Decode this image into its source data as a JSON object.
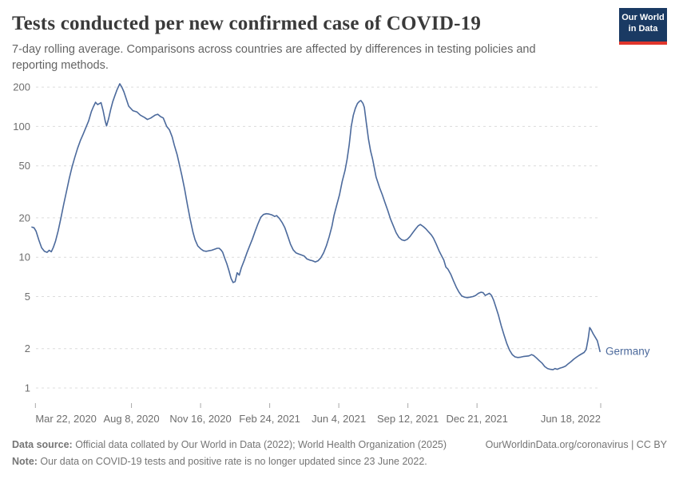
{
  "header": {
    "title": "Tests conducted per new confirmed case of COVID-19",
    "subtitle": "7-day rolling average. Comparisons across countries are affected by differences in testing policies and reporting methods.",
    "logo": {
      "line1": "Our World",
      "line2": "in Data",
      "bg_color": "#1a3a63",
      "bar_color": "#e0362c"
    }
  },
  "chart_data": {
    "type": "line",
    "title": "Tests conducted per new confirmed case of COVID-19",
    "y_scale": "log",
    "ylim": [
      1,
      240
    ],
    "grid": "dashed-horizontal",
    "axis_label_color": "#6e6e6e",
    "gridline_color": "#dcdcdc",
    "y_ticks": [
      200,
      100,
      50,
      20,
      10,
      5,
      2,
      1
    ],
    "x_range": [
      "2020-03-17",
      "2022-06-18"
    ],
    "x_ticks": [
      {
        "date": "2020-03-22",
        "label": "Mar 22, 2020"
      },
      {
        "date": "2020-08-08",
        "label": "Aug 8, 2020"
      },
      {
        "date": "2020-11-16",
        "label": "Nov 16, 2020"
      },
      {
        "date": "2021-02-24",
        "label": "Feb 24, 2021"
      },
      {
        "date": "2021-06-04",
        "label": "Jun 4, 2021"
      },
      {
        "date": "2021-09-12",
        "label": "Sep 12, 2021"
      },
      {
        "date": "2021-12-21",
        "label": "Dec 21, 2021"
      },
      {
        "date": "2022-06-18",
        "label": "Jun 18, 2022"
      }
    ],
    "series": [
      {
        "name": "Germany",
        "color": "#4C6A9C",
        "points": [
          [
            "2020-03-17",
            17
          ],
          [
            "2020-03-20",
            16.8
          ],
          [
            "2020-03-23",
            15.8
          ],
          [
            "2020-03-27",
            13.5
          ],
          [
            "2020-03-31",
            11.8
          ],
          [
            "2020-04-04",
            11.1
          ],
          [
            "2020-04-08",
            10.9
          ],
          [
            "2020-04-11",
            11.3
          ],
          [
            "2020-04-14",
            11.0
          ],
          [
            "2020-04-17",
            11.9
          ],
          [
            "2020-04-20",
            13.2
          ],
          [
            "2020-04-24",
            16
          ],
          [
            "2020-04-28",
            20
          ],
          [
            "2020-05-02",
            25.5
          ],
          [
            "2020-05-06",
            32
          ],
          [
            "2020-05-10",
            40
          ],
          [
            "2020-05-14",
            49
          ],
          [
            "2020-05-18",
            58
          ],
          [
            "2020-05-22",
            68
          ],
          [
            "2020-05-26",
            78
          ],
          [
            "2020-05-30",
            87
          ],
          [
            "2020-06-03",
            98
          ],
          [
            "2020-06-07",
            110
          ],
          [
            "2020-06-11",
            130
          ],
          [
            "2020-06-14",
            142
          ],
          [
            "2020-06-17",
            153
          ],
          [
            "2020-06-20",
            147
          ],
          [
            "2020-06-23",
            150
          ],
          [
            "2020-06-25",
            152
          ],
          [
            "2020-06-28",
            132
          ],
          [
            "2020-07-01",
            110
          ],
          [
            "2020-07-03",
            101
          ],
          [
            "2020-07-06",
            115
          ],
          [
            "2020-07-09",
            135
          ],
          [
            "2020-07-12",
            155
          ],
          [
            "2020-07-15",
            172
          ],
          [
            "2020-07-18",
            190
          ],
          [
            "2020-07-22",
            212
          ],
          [
            "2020-07-25",
            200
          ],
          [
            "2020-07-28",
            184
          ],
          [
            "2020-07-31",
            165
          ],
          [
            "2020-08-04",
            143
          ],
          [
            "2020-08-10",
            132
          ],
          [
            "2020-08-16",
            129
          ],
          [
            "2020-08-21",
            122
          ],
          [
            "2020-08-27",
            117
          ],
          [
            "2020-08-31",
            113
          ],
          [
            "2020-09-05",
            116
          ],
          [
            "2020-09-11",
            122
          ],
          [
            "2020-09-15",
            124
          ],
          [
            "2020-09-19",
            119
          ],
          [
            "2020-09-23",
            116
          ],
          [
            "2020-09-28",
            100
          ],
          [
            "2020-10-02",
            94
          ],
          [
            "2020-10-06",
            83
          ],
          [
            "2020-10-09",
            72
          ],
          [
            "2020-10-13",
            61
          ],
          [
            "2020-10-16",
            52
          ],
          [
            "2020-10-20",
            42
          ],
          [
            "2020-10-24",
            33
          ],
          [
            "2020-10-28",
            25
          ],
          [
            "2020-11-01",
            19.5
          ],
          [
            "2020-11-05",
            15.5
          ],
          [
            "2020-11-08",
            13.6
          ],
          [
            "2020-11-12",
            12.2
          ],
          [
            "2020-11-16",
            11.6
          ],
          [
            "2020-11-20",
            11.2
          ],
          [
            "2020-11-24",
            11.1
          ],
          [
            "2020-11-28",
            11.2
          ],
          [
            "2020-12-02",
            11.3
          ],
          [
            "2020-12-06",
            11.5
          ],
          [
            "2020-12-10",
            11.7
          ],
          [
            "2020-12-13",
            11.7
          ],
          [
            "2020-12-16",
            11.3
          ],
          [
            "2020-12-18",
            10.9
          ],
          [
            "2020-12-21",
            9.8
          ],
          [
            "2020-12-24",
            8.9
          ],
          [
            "2020-12-27",
            7.9
          ],
          [
            "2020-12-30",
            6.9
          ],
          [
            "2021-01-02",
            6.4
          ],
          [
            "2021-01-05",
            6.5
          ],
          [
            "2021-01-08",
            7.6
          ],
          [
            "2021-01-11",
            7.3
          ],
          [
            "2021-01-14",
            8.3
          ],
          [
            "2021-01-18",
            9.4
          ],
          [
            "2021-01-22",
            10.8
          ],
          [
            "2021-01-26",
            12.2
          ],
          [
            "2021-01-30",
            13.8
          ],
          [
            "2021-02-03",
            15.8
          ],
          [
            "2021-02-07",
            18
          ],
          [
            "2021-02-11",
            20.2
          ],
          [
            "2021-02-15",
            21.2
          ],
          [
            "2021-02-19",
            21.5
          ],
          [
            "2021-02-23",
            21.4
          ],
          [
            "2021-02-27",
            21.1
          ],
          [
            "2021-03-03",
            20.5
          ],
          [
            "2021-03-06",
            20.8
          ],
          [
            "2021-03-10",
            19.8
          ],
          [
            "2021-03-14",
            18.4
          ],
          [
            "2021-03-18",
            16.8
          ],
          [
            "2021-03-22",
            14.6
          ],
          [
            "2021-03-26",
            12.6
          ],
          [
            "2021-03-30",
            11.4
          ],
          [
            "2021-04-03",
            10.8
          ],
          [
            "2021-04-07",
            10.6
          ],
          [
            "2021-04-11",
            10.4
          ],
          [
            "2021-04-15",
            10.2
          ],
          [
            "2021-04-19",
            9.7
          ],
          [
            "2021-04-23",
            9.5
          ],
          [
            "2021-04-27",
            9.4
          ],
          [
            "2021-05-01",
            9.2
          ],
          [
            "2021-05-05",
            9.4
          ],
          [
            "2021-05-09",
            9.9
          ],
          [
            "2021-05-13",
            10.8
          ],
          [
            "2021-05-17",
            12.2
          ],
          [
            "2021-05-21",
            14.3
          ],
          [
            "2021-05-25",
            17.2
          ],
          [
            "2021-05-28",
            20.8
          ],
          [
            "2021-06-01",
            25
          ],
          [
            "2021-06-05",
            30
          ],
          [
            "2021-06-09",
            38
          ],
          [
            "2021-06-13",
            46
          ],
          [
            "2021-06-16",
            56
          ],
          [
            "2021-06-19",
            72
          ],
          [
            "2021-06-22",
            100
          ],
          [
            "2021-06-25",
            122
          ],
          [
            "2021-06-28",
            138
          ],
          [
            "2021-07-01",
            150
          ],
          [
            "2021-07-04",
            156
          ],
          [
            "2021-07-06",
            158
          ],
          [
            "2021-07-09",
            150
          ],
          [
            "2021-07-11",
            140
          ],
          [
            "2021-07-14",
            105
          ],
          [
            "2021-07-17",
            80
          ],
          [
            "2021-07-20",
            65
          ],
          [
            "2021-07-23",
            56
          ],
          [
            "2021-07-28",
            41
          ],
          [
            "2021-08-02",
            34
          ],
          [
            "2021-08-06",
            30
          ],
          [
            "2021-08-10",
            26
          ],
          [
            "2021-08-14",
            22.7
          ],
          [
            "2021-08-18",
            19.5
          ],
          [
            "2021-08-22",
            17.3
          ],
          [
            "2021-08-26",
            15.4
          ],
          [
            "2021-08-30",
            14.2
          ],
          [
            "2021-09-03",
            13.6
          ],
          [
            "2021-09-07",
            13.4
          ],
          [
            "2021-09-11",
            13.7
          ],
          [
            "2021-09-15",
            14.4
          ],
          [
            "2021-09-19",
            15.4
          ],
          [
            "2021-09-23",
            16.4
          ],
          [
            "2021-09-27",
            17.4
          ],
          [
            "2021-09-30",
            17.8
          ],
          [
            "2021-10-04",
            17.2
          ],
          [
            "2021-10-08",
            16.5
          ],
          [
            "2021-10-12",
            15.6
          ],
          [
            "2021-10-16",
            14.8
          ],
          [
            "2021-10-19",
            14
          ],
          [
            "2021-10-23",
            12.6
          ],
          [
            "2021-10-27",
            11.2
          ],
          [
            "2021-10-31",
            10.2
          ],
          [
            "2021-11-03",
            9.5
          ],
          [
            "2021-11-06",
            8.4
          ],
          [
            "2021-11-09",
            8.1
          ],
          [
            "2021-11-13",
            7.4
          ],
          [
            "2021-11-17",
            6.6
          ],
          [
            "2021-11-21",
            5.9
          ],
          [
            "2021-11-25",
            5.4
          ],
          [
            "2021-11-29",
            5.05
          ],
          [
            "2021-12-03",
            4.95
          ],
          [
            "2021-12-07",
            4.9
          ],
          [
            "2021-12-11",
            4.95
          ],
          [
            "2021-12-15",
            5.0
          ],
          [
            "2021-12-19",
            5.1
          ],
          [
            "2021-12-23",
            5.3
          ],
          [
            "2021-12-27",
            5.4
          ],
          [
            "2021-12-30",
            5.35
          ],
          [
            "2022-01-02",
            5.1
          ],
          [
            "2022-01-05",
            5.2
          ],
          [
            "2022-01-08",
            5.3
          ],
          [
            "2022-01-11",
            5.1
          ],
          [
            "2022-01-14",
            4.7
          ],
          [
            "2022-01-17",
            4.2
          ],
          [
            "2022-01-21",
            3.6
          ],
          [
            "2022-01-25",
            3.0
          ],
          [
            "2022-01-29",
            2.55
          ],
          [
            "2022-02-02",
            2.2
          ],
          [
            "2022-02-06",
            1.95
          ],
          [
            "2022-02-10",
            1.8
          ],
          [
            "2022-02-14",
            1.73
          ],
          [
            "2022-02-18",
            1.71
          ],
          [
            "2022-02-22",
            1.72
          ],
          [
            "2022-02-26",
            1.74
          ],
          [
            "2022-03-02",
            1.75
          ],
          [
            "2022-03-06",
            1.76
          ],
          [
            "2022-03-10",
            1.8
          ],
          [
            "2022-03-13",
            1.77
          ],
          [
            "2022-03-17",
            1.7
          ],
          [
            "2022-03-21",
            1.62
          ],
          [
            "2022-03-25",
            1.55
          ],
          [
            "2022-03-29",
            1.46
          ],
          [
            "2022-04-02",
            1.41
          ],
          [
            "2022-04-06",
            1.39
          ],
          [
            "2022-04-10",
            1.38
          ],
          [
            "2022-04-13",
            1.41
          ],
          [
            "2022-04-16",
            1.39
          ],
          [
            "2022-04-20",
            1.42
          ],
          [
            "2022-04-24",
            1.44
          ],
          [
            "2022-04-28",
            1.47
          ],
          [
            "2022-05-02",
            1.53
          ],
          [
            "2022-05-06",
            1.59
          ],
          [
            "2022-05-10",
            1.66
          ],
          [
            "2022-05-14",
            1.72
          ],
          [
            "2022-05-18",
            1.78
          ],
          [
            "2022-05-22",
            1.83
          ],
          [
            "2022-05-25",
            1.87
          ],
          [
            "2022-05-28",
            1.97
          ],
          [
            "2022-05-31",
            2.4
          ],
          [
            "2022-06-02",
            2.9
          ],
          [
            "2022-06-04",
            2.8
          ],
          [
            "2022-06-07",
            2.6
          ],
          [
            "2022-06-10",
            2.45
          ],
          [
            "2022-06-13",
            2.3
          ],
          [
            "2022-06-15",
            2.1
          ],
          [
            "2022-06-17",
            1.9
          ]
        ]
      }
    ]
  },
  "footer": {
    "source_label": "Data source:",
    "source_text": " Official data collated by Our World in Data (2022); World Health Organization (2025)",
    "credit": "OurWorldinData.org/coronavirus | CC BY",
    "note_label": "Note:",
    "note_text": " Our data on COVID-19 tests and positive rate is no longer updated since 23 June 2022."
  }
}
